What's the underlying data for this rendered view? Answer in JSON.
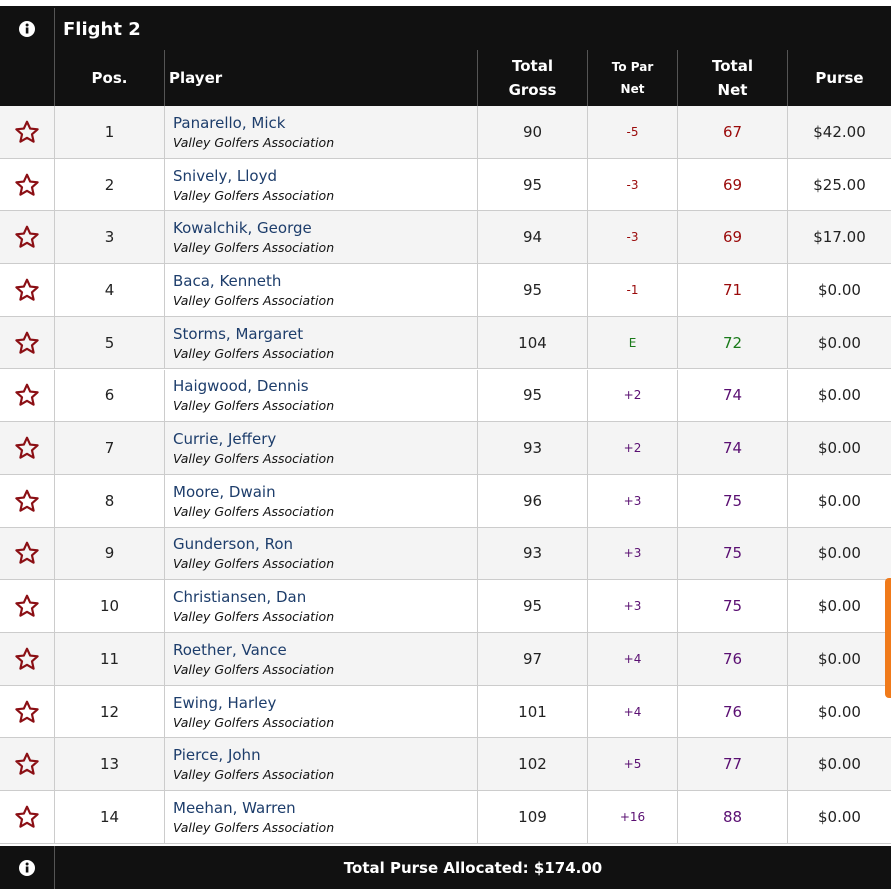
{
  "title": "Flight 2",
  "header": {
    "pos": "Pos.",
    "player": "Player",
    "gross": "Total Gross",
    "to_par": "To Par Net",
    "net": "Total Net",
    "purse": "Purse"
  },
  "table": {
    "rows": [
      {
        "pos": 1,
        "player": "Panarello, Mick",
        "club": "Valley Golfers Association",
        "gross": 90,
        "to_par": "-5",
        "net": 67,
        "purse": "$42.00"
      },
      {
        "pos": 2,
        "player": "Snively, Lloyd",
        "club": "Valley Golfers Association",
        "gross": 95,
        "to_par": "-3",
        "net": 69,
        "purse": "$25.00"
      },
      {
        "pos": 3,
        "player": "Kowalchik, George",
        "club": "Valley Golfers Association",
        "gross": 94,
        "to_par": "-3",
        "net": 69,
        "purse": "$17.00"
      },
      {
        "pos": 4,
        "player": "Baca, Kenneth",
        "club": "Valley Golfers Association",
        "gross": 95,
        "to_par": "-1",
        "net": 71,
        "purse": "$0.00"
      },
      {
        "pos": 5,
        "player": "Storms, Margaret",
        "club": "Valley Golfers Association",
        "gross": 104,
        "to_par": "E",
        "net": 72,
        "purse": "$0.00"
      },
      {
        "pos": 6,
        "player": "Haigwood, Dennis",
        "club": "Valley Golfers Association",
        "gross": 95,
        "to_par": "+2",
        "net": 74,
        "purse": "$0.00"
      },
      {
        "pos": 7,
        "player": "Currie, Jeffery",
        "club": "Valley Golfers Association",
        "gross": 93,
        "to_par": "+2",
        "net": 74,
        "purse": "$0.00"
      },
      {
        "pos": 8,
        "player": "Moore, Dwain",
        "club": "Valley Golfers Association",
        "gross": 96,
        "to_par": "+3",
        "net": 75,
        "purse": "$0.00"
      },
      {
        "pos": 9,
        "player": "Gunderson, Ron",
        "club": "Valley Golfers Association",
        "gross": 93,
        "to_par": "+3",
        "net": 75,
        "purse": "$0.00"
      },
      {
        "pos": 10,
        "player": "Christiansen, Dan",
        "club": "Valley Golfers Association",
        "gross": 95,
        "to_par": "+3",
        "net": 75,
        "purse": "$0.00"
      },
      {
        "pos": 11,
        "player": "Roether, Vance",
        "club": "Valley Golfers Association",
        "gross": 97,
        "to_par": "+4",
        "net": 76,
        "purse": "$0.00"
      },
      {
        "pos": 12,
        "player": "Ewing, Harley",
        "club": "Valley Golfers Association",
        "gross": 101,
        "to_par": "+4",
        "net": 76,
        "purse": "$0.00"
      },
      {
        "pos": 13,
        "player": "Pierce, John",
        "club": "Valley Golfers Association",
        "gross": 102,
        "to_par": "+5",
        "net": 77,
        "purse": "$0.00"
      },
      {
        "pos": 14,
        "player": "Meehan, Warren",
        "club": "Valley Golfers Association",
        "gross": 109,
        "to_par": "+16",
        "net": 88,
        "purse": "$0.00"
      }
    ]
  },
  "footer": "Total Purse Allocated: $174.00"
}
